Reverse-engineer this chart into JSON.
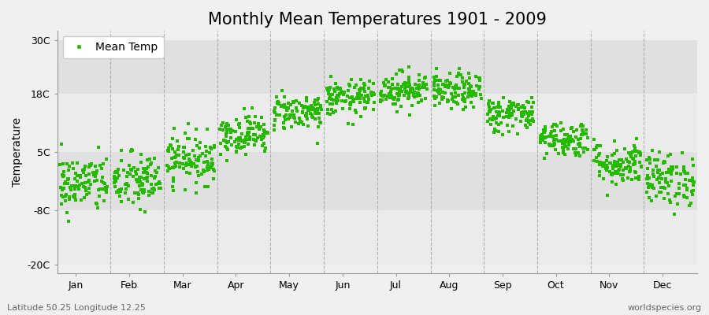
{
  "title": "Monthly Mean Temperatures 1901 - 2009",
  "ylabel": "Temperature",
  "bottom_left_text": "Latitude 50.25 Longitude 12.25",
  "bottom_right_text": "worldspecies.org",
  "legend_label": "Mean Temp",
  "yticks": [
    -20,
    -8,
    5,
    18,
    30
  ],
  "ytick_labels": [
    "-20C",
    "-8C",
    "5C",
    "18C",
    "30C"
  ],
  "ylim": [
    -22,
    32
  ],
  "months": [
    "Jan",
    "Feb",
    "Mar",
    "Apr",
    "May",
    "Jun",
    "Jul",
    "Aug",
    "Sep",
    "Oct",
    "Nov",
    "Dec"
  ],
  "mean_temps": [
    -2.0,
    -1.5,
    3.5,
    9.0,
    14.0,
    17.0,
    19.0,
    18.5,
    13.5,
    8.0,
    2.5,
    -1.0
  ],
  "std_temps": [
    3.2,
    3.2,
    2.8,
    2.2,
    2.0,
    2.0,
    2.0,
    2.0,
    2.0,
    2.0,
    2.5,
    3.0
  ],
  "n_years": 109,
  "point_color": "#22bb00",
  "bg_light": "#f0f0f0",
  "bg_dark": "#e0e0e0",
  "plot_outer_color": "#d8d8d8",
  "grid_color": "#888888",
  "title_fontsize": 15,
  "axis_fontsize": 10,
  "tick_fontsize": 9,
  "point_size": 5,
  "seed": 42,
  "band_colors": [
    "#ebebeb",
    "#e0e0e0",
    "#ebebeb",
    "#e0e0e0"
  ],
  "band_edges": [
    -20,
    -8,
    5,
    18,
    30
  ]
}
